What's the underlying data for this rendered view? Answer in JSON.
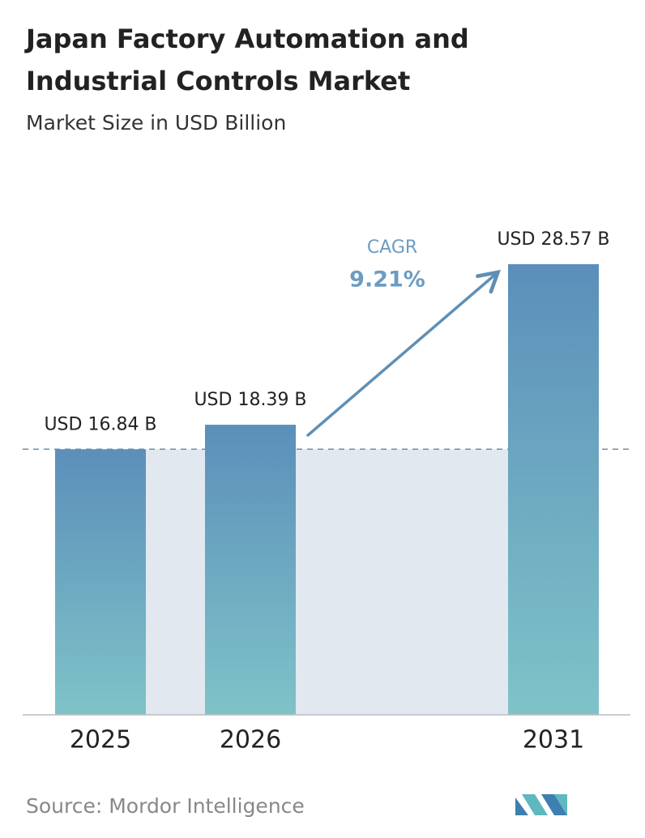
{
  "chart_data": {
    "type": "bar",
    "title": [
      "Japan Factory Automation and",
      "Industrial Controls Market"
    ],
    "subtitle": "Market Size in USD Billion",
    "categories": [
      "2025",
      "2026",
      "2031"
    ],
    "values": [
      16.84,
      18.39,
      28.57
    ],
    "value_labels": [
      "USD 16.84 B",
      "USD 18.39 B",
      "USD 28.57 B"
    ],
    "annotations": {
      "cagr_label": "CAGR",
      "cagr_value": "9.21%"
    },
    "source": "Source:  Mordor Intelligence",
    "color": [
      "#5b8fba",
      "#7fc3c8"
    ]
  }
}
